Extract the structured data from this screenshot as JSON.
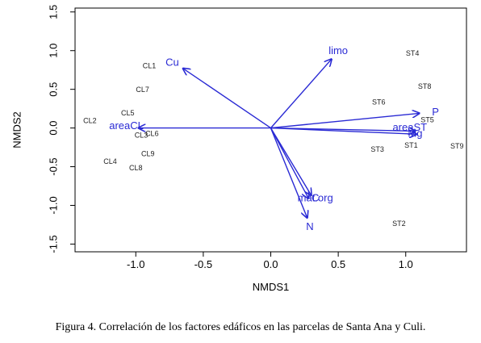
{
  "chart_data": {
    "type": "scatter",
    "xlabel": "NMDS1",
    "ylabel": "NMDS2",
    "xlim": [
      -1.45,
      1.45
    ],
    "ylim": [
      -1.6,
      1.55
    ],
    "xticks": [
      -1.0,
      -0.5,
      0.0,
      0.5,
      1.0
    ],
    "xtick_labels": [
      "-1.0",
      "-0.5",
      "0.0",
      "0.5",
      "1.0"
    ],
    "yticks": [
      1.5,
      1.0,
      0.5,
      0.0,
      -0.5,
      -1.0,
      -1.5
    ],
    "ytick_labels": [
      "1.5",
      "1.0",
      "0.5",
      "0.0",
      "-0.5",
      "-1.0",
      "-1.5"
    ],
    "arrow_color": "#2a2ad4",
    "sites": [
      {
        "label": "CL1",
        "x": -0.9,
        "y": 0.8
      },
      {
        "label": "CL7",
        "x": -0.95,
        "y": 0.49
      },
      {
        "label": "CL2",
        "x": -1.34,
        "y": 0.09
      },
      {
        "label": "CL5",
        "x": -1.06,
        "y": 0.19
      },
      {
        "label": "CL3",
        "x": -0.96,
        "y": -0.1
      },
      {
        "label": "CL6",
        "x": -0.88,
        "y": -0.08
      },
      {
        "label": "CL9",
        "x": -0.91,
        "y": -0.34
      },
      {
        "label": "CL4",
        "x": -1.19,
        "y": -0.44
      },
      {
        "label": "CL8",
        "x": -1.0,
        "y": -0.52
      },
      {
        "label": "ST4",
        "x": 1.05,
        "y": 0.96
      },
      {
        "label": "ST8",
        "x": 1.14,
        "y": 0.53
      },
      {
        "label": "ST6",
        "x": 0.8,
        "y": 0.33
      },
      {
        "label": "ST5",
        "x": 1.16,
        "y": 0.1
      },
      {
        "label": "ST3",
        "x": 0.79,
        "y": -0.28
      },
      {
        "label": "ST1",
        "x": 1.04,
        "y": -0.23
      },
      {
        "label": "ST9",
        "x": 1.38,
        "y": -0.24
      },
      {
        "label": "ST2",
        "x": 0.95,
        "y": -1.24
      }
    ],
    "vectors": [
      {
        "label": "Cu",
        "x": -0.65,
        "y": 0.77,
        "lx": -0.73,
        "ly": 0.84
      },
      {
        "label": "limo",
        "x": 0.45,
        "y": 0.89,
        "lx": 0.5,
        "ly": 0.99
      },
      {
        "label": "P",
        "x": 1.1,
        "y": 0.19,
        "lx": 1.22,
        "ly": 0.2
      },
      {
        "label": "areaST",
        "x": 1.07,
        "y": -0.04,
        "lx": 1.03,
        "ly": 0.0
      },
      {
        "label": "Mg",
        "x": 1.08,
        "y": -0.08,
        "lx": 1.07,
        "ly": -0.08
      },
      {
        "label": "areaCL",
        "x": -0.98,
        "y": 0.0,
        "lx": -1.07,
        "ly": 0.02
      },
      {
        "label": "mat.org",
        "x": 0.3,
        "y": -0.87,
        "lx": 0.33,
        "ly": -0.91
      },
      {
        "label": "C",
        "x": 0.28,
        "y": -0.91,
        "lx": 0.33,
        "ly": -0.91
      },
      {
        "label": "N",
        "x": 0.27,
        "y": -1.16,
        "lx": 0.29,
        "ly": -1.28
      }
    ]
  },
  "caption": "Figura 4. Correlación de los factores edáficos en las parcelas de Santa Ana y Culi."
}
